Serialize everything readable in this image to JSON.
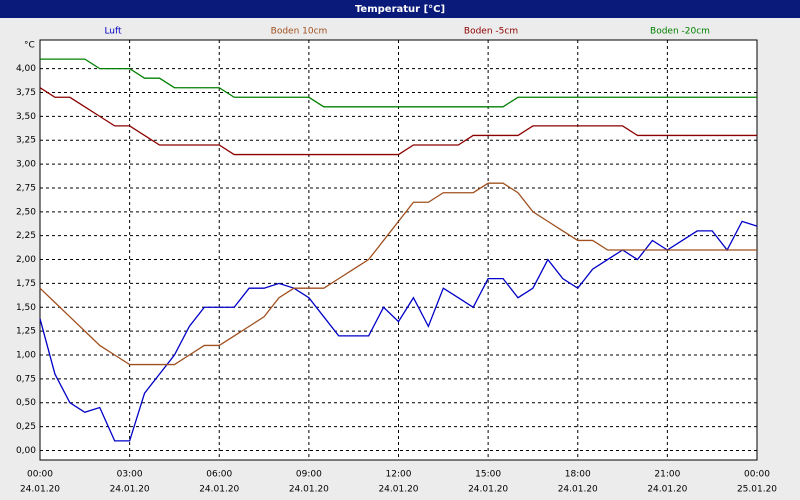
{
  "chart_data": {
    "type": "line",
    "title": "Temperatur [°C]",
    "y_unit": "°C",
    "x": [
      0,
      0.5,
      1,
      1.5,
      2,
      2.5,
      3,
      3.5,
      4,
      4.5,
      5,
      5.5,
      6,
      6.5,
      7,
      7.5,
      8,
      8.5,
      9,
      9.5,
      10,
      10.5,
      11,
      11.5,
      12,
      12.5,
      13,
      13.5,
      14,
      14.5,
      15,
      15.5,
      16,
      16.5,
      17,
      17.5,
      18,
      18.5,
      19,
      19.5,
      20,
      20.5,
      21,
      21.5,
      22,
      22.5,
      23,
      23.5,
      24
    ],
    "series": [
      {
        "name": "Luft",
        "color": "#0000c8",
        "values": [
          1.38,
          0.8,
          0.5,
          0.4,
          0.45,
          0.1,
          0.1,
          0.6,
          0.8,
          1.0,
          1.3,
          1.5,
          1.5,
          1.5,
          1.7,
          1.7,
          1.75,
          1.7,
          1.6,
          1.4,
          1.2,
          1.2,
          1.2,
          1.5,
          1.35,
          1.6,
          1.3,
          1.7,
          1.6,
          1.5,
          1.8,
          1.8,
          1.6,
          1.7,
          2.0,
          1.8,
          1.7,
          1.9,
          2.0,
          2.1,
          2.0,
          2.2,
          2.1,
          2.2,
          2.3,
          2.3,
          2.1,
          2.4,
          2.35
        ]
      },
      {
        "name": "Boden 10cm",
        "color": "#a0501e",
        "values": [
          1.7,
          1.55,
          1.4,
          1.25,
          1.1,
          1.0,
          0.9,
          0.9,
          0.9,
          0.9,
          1.0,
          1.1,
          1.1,
          1.2,
          1.3,
          1.4,
          1.6,
          1.7,
          1.7,
          1.7,
          1.8,
          1.9,
          2.0,
          2.2,
          2.4,
          2.6,
          2.6,
          2.7,
          2.7,
          2.7,
          2.8,
          2.8,
          2.7,
          2.5,
          2.4,
          2.3,
          2.2,
          2.2,
          2.1,
          2.1,
          2.1,
          2.1,
          2.1,
          2.1,
          2.1,
          2.1,
          2.1,
          2.1,
          2.1
        ]
      },
      {
        "name": "Boden -5cm",
        "color": "#8c0000",
        "values": [
          3.8,
          3.7,
          3.7,
          3.6,
          3.5,
          3.4,
          3.4,
          3.3,
          3.2,
          3.2,
          3.2,
          3.2,
          3.2,
          3.1,
          3.1,
          3.1,
          3.1,
          3.1,
          3.1,
          3.1,
          3.1,
          3.1,
          3.1,
          3.1,
          3.1,
          3.2,
          3.2,
          3.2,
          3.2,
          3.3,
          3.3,
          3.3,
          3.3,
          3.4,
          3.4,
          3.4,
          3.4,
          3.4,
          3.4,
          3.4,
          3.3,
          3.3,
          3.3,
          3.3,
          3.3,
          3.3,
          3.3,
          3.3,
          3.3
        ]
      },
      {
        "name": "Boden -20cm",
        "color": "#008000",
        "values": [
          4.1,
          4.1,
          4.1,
          4.1,
          4.0,
          4.0,
          4.0,
          3.9,
          3.9,
          3.8,
          3.8,
          3.8,
          3.8,
          3.7,
          3.7,
          3.7,
          3.7,
          3.7,
          3.7,
          3.6,
          3.6,
          3.6,
          3.6,
          3.6,
          3.6,
          3.6,
          3.6,
          3.6,
          3.6,
          3.6,
          3.6,
          3.6,
          3.7,
          3.7,
          3.7,
          3.7,
          3.7,
          3.7,
          3.7,
          3.7,
          3.7,
          3.7,
          3.7,
          3.7,
          3.7,
          3.7,
          3.7,
          3.7,
          3.7
        ]
      }
    ],
    "xlim": [
      0,
      24
    ],
    "xticks": [
      {
        "value": 0,
        "label": [
          "00:00",
          "24.01.20"
        ]
      },
      {
        "value": 3,
        "label": [
          "03:00",
          "24.01.20"
        ]
      },
      {
        "value": 6,
        "label": [
          "06:00",
          "24.01.20"
        ]
      },
      {
        "value": 9,
        "label": [
          "09:00",
          "24.01.20"
        ]
      },
      {
        "value": 12,
        "label": [
          "12:00",
          "24.01.20"
        ]
      },
      {
        "value": 15,
        "label": [
          "15:00",
          "24.01.20"
        ]
      },
      {
        "value": 18,
        "label": [
          "18:00",
          "24.01.20"
        ]
      },
      {
        "value": 21,
        "label": [
          "21:00",
          "24.01.20"
        ]
      },
      {
        "value": 24,
        "label": [
          "00:00",
          "25.01.20"
        ]
      }
    ],
    "ylim": [
      -0.1,
      4.3
    ],
    "yticks": [
      {
        "value": 0,
        "label": "0,00"
      },
      {
        "value": 0.25,
        "label": "0,25"
      },
      {
        "value": 0.5,
        "label": "0,50"
      },
      {
        "value": 0.75,
        "label": "0,75"
      },
      {
        "value": 1,
        "label": "1,00"
      },
      {
        "value": 1.25,
        "label": "1,25"
      },
      {
        "value": 1.5,
        "label": "1,50"
      },
      {
        "value": 1.75,
        "label": "1,75"
      },
      {
        "value": 2,
        "label": "2,00"
      },
      {
        "value": 2.25,
        "label": "2,25"
      },
      {
        "value": 2.5,
        "label": "2,50"
      },
      {
        "value": 2.75,
        "label": "2,75"
      },
      {
        "value": 3,
        "label": "3,00"
      },
      {
        "value": 3.25,
        "label": "3,25"
      },
      {
        "value": 3.5,
        "label": "3,50"
      },
      {
        "value": 3.75,
        "label": "3,75"
      },
      {
        "value": 4,
        "label": "4,00"
      }
    ],
    "grid": true
  }
}
